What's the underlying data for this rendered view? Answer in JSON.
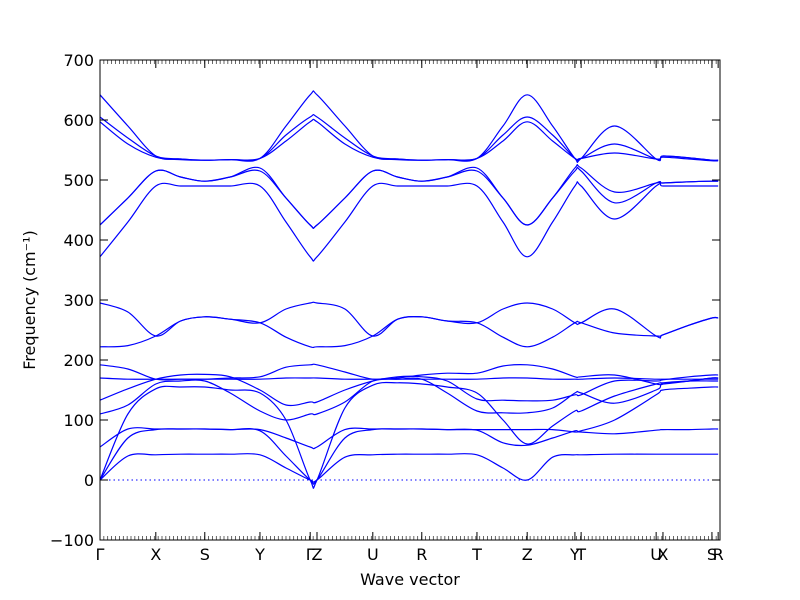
{
  "chart_data": {
    "type": "line",
    "xlabel": "Wave vector",
    "ylabel": "Frequency (cm⁻¹)",
    "ylim": [
      -100,
      700
    ],
    "yticks": [
      -100,
      0,
      100,
      200,
      300,
      400,
      500,
      600,
      700
    ],
    "xlim": [
      0,
      1
    ],
    "high_symmetry_points": [
      {
        "label": "Γ",
        "x": 0.0
      },
      {
        "label": "X",
        "x": 0.09
      },
      {
        "label": "S",
        "x": 0.169
      },
      {
        "label": "Y",
        "x": 0.258
      },
      {
        "label": "Γ",
        "x": 0.339
      },
      {
        "label": "Z",
        "x": 0.35
      },
      {
        "label": "U",
        "x": 0.44
      },
      {
        "label": "R",
        "x": 0.519
      },
      {
        "label": "T",
        "x": 0.608
      },
      {
        "label": "Z",
        "x": 0.689
      },
      {
        "label": "Y",
        "x": 0.766
      },
      {
        "label": "T",
        "x": 0.776
      },
      {
        "label": "U",
        "x": 0.897
      },
      {
        "label": "X",
        "x": 0.908
      },
      {
        "label": "S",
        "x": 0.987
      },
      {
        "label": "R",
        "x": 0.997
      }
    ],
    "zero_reference_line": true,
    "line_color": "#0000ff",
    "bands": [
      {
        "name": "",
        "x": [
          0,
          0.045,
          0.09,
          0.13,
          0.169,
          0.21,
          0.258,
          0.3,
          0.339,
          0.35,
          0.395,
          0.44,
          0.48,
          0.519,
          0.56,
          0.608,
          0.65,
          0.689,
          0.73,
          0.766,
          0.776,
          0.83,
          0.897,
          0.908,
          0.95,
          0.987,
          0.997
        ],
        "values": [
          0,
          40,
          42,
          43,
          43,
          43,
          42,
          20,
          0,
          0,
          38,
          42,
          43,
          43,
          43,
          42,
          20,
          0,
          38,
          42,
          42,
          43,
          43,
          43,
          43,
          43,
          43
        ]
      },
      {
        "name": "",
        "x": [
          0,
          0.045,
          0.09,
          0.13,
          0.169,
          0.21,
          0.258,
          0.3,
          0.339,
          0.35,
          0.395,
          0.44,
          0.48,
          0.519,
          0.56,
          0.608,
          0.65,
          0.689,
          0.73,
          0.766,
          0.776,
          0.83,
          0.897,
          0.908,
          0.95,
          0.987,
          0.997
        ],
        "values": [
          0,
          70,
          84,
          85,
          85,
          84,
          82,
          40,
          0,
          0,
          70,
          84,
          85,
          85,
          84,
          84,
          84,
          84,
          84,
          80,
          80,
          77,
          83,
          84,
          84,
          85,
          85
        ]
      },
      {
        "name": "",
        "x": [
          0,
          0.045,
          0.09,
          0.13,
          0.169,
          0.21,
          0.258,
          0.3,
          0.339,
          0.35,
          0.395,
          0.44,
          0.48,
          0.519,
          0.56,
          0.608,
          0.65,
          0.689,
          0.73,
          0.766,
          0.776,
          0.83,
          0.897,
          0.908,
          0.95,
          0.987,
          0.997
        ],
        "values": [
          55,
          85,
          85,
          85,
          85,
          84,
          84,
          70,
          55,
          55,
          84,
          85,
          85,
          85,
          84,
          83,
          62,
          58,
          70,
          82,
          82,
          100,
          142,
          150,
          153,
          155,
          155
        ]
      },
      {
        "name": "",
        "x": [
          0,
          0.045,
          0.09,
          0.13,
          0.169,
          0.21,
          0.258,
          0.3,
          0.339,
          0.35,
          0.395,
          0.44,
          0.48,
          0.519,
          0.56,
          0.608,
          0.65,
          0.689,
          0.73,
          0.766,
          0.776,
          0.83,
          0.897,
          0.908,
          0.95,
          0.987,
          0.997
        ],
        "values": [
          0,
          110,
          152,
          155,
          155,
          150,
          145,
          100,
          0,
          0,
          120,
          158,
          162,
          160,
          155,
          145,
          100,
          60,
          90,
          115,
          115,
          140,
          160,
          162,
          165,
          165,
          165
        ]
      },
      {
        "name": "",
        "x": [
          0,
          0.045,
          0.09,
          0.13,
          0.169,
          0.21,
          0.258,
          0.3,
          0.339,
          0.35,
          0.395,
          0.44,
          0.48,
          0.519,
          0.56,
          0.608,
          0.65,
          0.689,
          0.73,
          0.766,
          0.776,
          0.83,
          0.897,
          0.908,
          0.95,
          0.987,
          0.997
        ],
        "values": [
          110,
          125,
          160,
          165,
          165,
          145,
          115,
          100,
          110,
          110,
          130,
          165,
          168,
          168,
          145,
          115,
          112,
          112,
          120,
          145,
          145,
          128,
          150,
          160,
          165,
          170,
          170
        ]
      },
      {
        "name": "",
        "x": [
          0,
          0.045,
          0.09,
          0.13,
          0.169,
          0.21,
          0.258,
          0.3,
          0.339,
          0.35,
          0.395,
          0.44,
          0.48,
          0.519,
          0.56,
          0.608,
          0.65,
          0.689,
          0.73,
          0.766,
          0.776,
          0.83,
          0.897,
          0.908,
          0.95,
          0.987,
          0.997
        ],
        "values": [
          133,
          152,
          168,
          175,
          176,
          172,
          150,
          125,
          130,
          130,
          150,
          165,
          172,
          172,
          165,
          135,
          133,
          132,
          133,
          142,
          142,
          165,
          165,
          167,
          172,
          175,
          175
        ]
      },
      {
        "name": "",
        "x": [
          0,
          0.045,
          0.09,
          0.13,
          0.169,
          0.21,
          0.258,
          0.3,
          0.339,
          0.35,
          0.395,
          0.44,
          0.48,
          0.519,
          0.56,
          0.608,
          0.65,
          0.689,
          0.73,
          0.766,
          0.776,
          0.83,
          0.897,
          0.908,
          0.95,
          0.987,
          0.997
        ],
        "values": [
          170,
          168,
          168,
          168,
          168,
          168,
          168,
          170,
          170,
          170,
          168,
          168,
          168,
          168,
          168,
          168,
          170,
          170,
          168,
          168,
          168,
          170,
          168,
          168,
          168,
          168,
          168
        ]
      },
      {
        "name": "",
        "x": [
          0,
          0.045,
          0.09,
          0.13,
          0.169,
          0.21,
          0.258,
          0.3,
          0.339,
          0.35,
          0.395,
          0.44,
          0.48,
          0.519,
          0.56,
          0.608,
          0.65,
          0.689,
          0.73,
          0.766,
          0.776,
          0.83,
          0.897,
          0.908,
          0.95,
          0.987,
          0.997
        ],
        "values": [
          192,
          185,
          168,
          168,
          168,
          170,
          172,
          188,
          192,
          192,
          180,
          168,
          170,
          175,
          178,
          178,
          190,
          192,
          185,
          172,
          172,
          175,
          160,
          160,
          165,
          170,
          170
        ]
      },
      {
        "name": "",
        "x": [
          0,
          0.045,
          0.09,
          0.13,
          0.169,
          0.21,
          0.258,
          0.3,
          0.339,
          0.35,
          0.395,
          0.44,
          0.48,
          0.519,
          0.56,
          0.608,
          0.65,
          0.689,
          0.73,
          0.766,
          0.776,
          0.83,
          0.897,
          0.908,
          0.95,
          0.987,
          0.997
        ],
        "values": [
          222,
          224,
          240,
          265,
          272,
          268,
          262,
          238,
          222,
          222,
          224,
          240,
          268,
          272,
          265,
          262,
          238,
          222,
          238,
          262,
          262,
          245,
          240,
          242,
          258,
          270,
          270
        ]
      },
      {
        "name": "",
        "x": [
          0,
          0.045,
          0.09,
          0.13,
          0.169,
          0.21,
          0.258,
          0.3,
          0.339,
          0.35,
          0.395,
          0.44,
          0.48,
          0.519,
          0.56,
          0.608,
          0.65,
          0.689,
          0.73,
          0.766,
          0.776,
          0.83,
          0.897,
          0.908,
          0.95,
          0.987,
          0.997
        ],
        "values": [
          295,
          280,
          240,
          265,
          272,
          268,
          262,
          285,
          295,
          295,
          285,
          240,
          268,
          272,
          265,
          262,
          285,
          295,
          285,
          262,
          262,
          285,
          240,
          242,
          258,
          270,
          270
        ]
      },
      {
        "name": "",
        "x": [
          0,
          0.045,
          0.09,
          0.13,
          0.169,
          0.21,
          0.258,
          0.3,
          0.339,
          0.35,
          0.395,
          0.44,
          0.48,
          0.519,
          0.56,
          0.608,
          0.65,
          0.689,
          0.73,
          0.766,
          0.776,
          0.83,
          0.897,
          0.908,
          0.95,
          0.987,
          0.997
        ],
        "values": [
          372,
          430,
          490,
          490,
          490,
          490,
          490,
          430,
          372,
          372,
          430,
          490,
          490,
          490,
          490,
          490,
          430,
          372,
          430,
          490,
          490,
          435,
          490,
          490,
          490,
          490,
          490
        ]
      },
      {
        "name": "",
        "x": [
          0,
          0.045,
          0.09,
          0.13,
          0.169,
          0.21,
          0.258,
          0.3,
          0.339,
          0.35,
          0.395,
          0.44,
          0.48,
          0.519,
          0.56,
          0.608,
          0.65,
          0.689,
          0.73,
          0.766,
          0.776,
          0.83,
          0.897,
          0.908,
          0.95,
          0.987,
          0.997
        ],
        "values": [
          425,
          470,
          515,
          505,
          498,
          505,
          515,
          470,
          425,
          425,
          470,
          515,
          505,
          498,
          505,
          515,
          470,
          425,
          470,
          515,
          515,
          462,
          495,
          495,
          497,
          498,
          498
        ]
      },
      {
        "name": "",
        "x": [
          0,
          0.045,
          0.09,
          0.13,
          0.169,
          0.21,
          0.258,
          0.3,
          0.339,
          0.35,
          0.395,
          0.44,
          0.48,
          0.519,
          0.56,
          0.608,
          0.65,
          0.689,
          0.73,
          0.766,
          0.776,
          0.83,
          0.897,
          0.908,
          0.95,
          0.987,
          0.997
        ],
        "values": [
          425,
          470,
          515,
          505,
          498,
          505,
          520,
          470,
          425,
          425,
          470,
          515,
          505,
          498,
          505,
          520,
          470,
          425,
          470,
          520,
          520,
          480,
          495,
          495,
          497,
          498,
          498
        ]
      },
      {
        "name": "",
        "x": [
          0,
          0.045,
          0.09,
          0.13,
          0.169,
          0.21,
          0.258,
          0.3,
          0.339,
          0.35,
          0.395,
          0.44,
          0.48,
          0.519,
          0.56,
          0.608,
          0.65,
          0.689,
          0.73,
          0.766,
          0.776,
          0.83,
          0.897,
          0.908,
          0.95,
          0.987,
          0.997
        ],
        "values": [
          597,
          560,
          538,
          534,
          533,
          534,
          536,
          565,
          597,
          597,
          560,
          538,
          534,
          533,
          534,
          536,
          565,
          597,
          565,
          536,
          536,
          545,
          535,
          538,
          535,
          532,
          532
        ]
      },
      {
        "name": "",
        "x": [
          0,
          0.045,
          0.09,
          0.13,
          0.169,
          0.21,
          0.258,
          0.3,
          0.339,
          0.35,
          0.395,
          0.44,
          0.48,
          0.519,
          0.56,
          0.608,
          0.65,
          0.689,
          0.73,
          0.766,
          0.776,
          0.83,
          0.897,
          0.908,
          0.95,
          0.987,
          0.997
        ],
        "values": [
          605,
          570,
          540,
          535,
          533,
          534,
          536,
          575,
          605,
          605,
          570,
          540,
          535,
          533,
          534,
          536,
          575,
          605,
          575,
          536,
          536,
          560,
          535,
          540,
          537,
          533,
          533
        ]
      },
      {
        "name": "",
        "x": [
          0,
          0.045,
          0.09,
          0.13,
          0.169,
          0.21,
          0.258,
          0.3,
          0.339,
          0.35,
          0.395,
          0.44,
          0.48,
          0.519,
          0.56,
          0.608,
          0.65,
          0.689,
          0.73,
          0.766,
          0.776,
          0.83,
          0.897,
          0.908,
          0.95,
          0.987,
          0.997
        ],
        "values": [
          642,
          590,
          540,
          535,
          533,
          534,
          536,
          590,
          642,
          642,
          590,
          540,
          535,
          533,
          534,
          536,
          590,
          642,
          590,
          536,
          536,
          590,
          535,
          540,
          537,
          533,
          533
        ]
      }
    ]
  }
}
